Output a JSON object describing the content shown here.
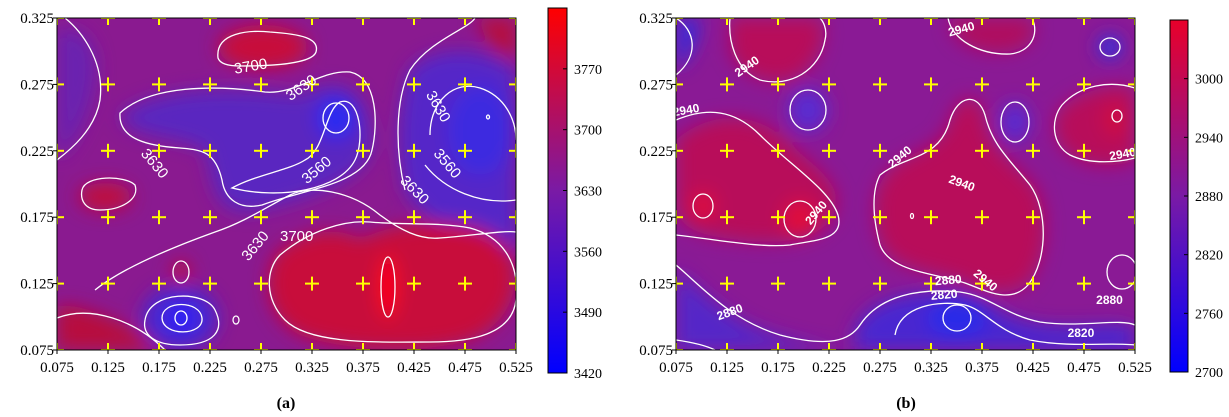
{
  "chart_data": [
    {
      "type": "heatmap",
      "caption": "(a)",
      "title": "",
      "xlabel": "",
      "ylabel": "",
      "xlim": [
        0.075,
        0.525
      ],
      "ylim": [
        0.075,
        0.325
      ],
      "x_ticks": [
        "0.075",
        "0.125",
        "0.175",
        "0.225",
        "0.275",
        "0.325",
        "0.375",
        "0.425",
        "0.475",
        "0.525"
      ],
      "y_ticks": [
        "0.075",
        "0.125",
        "0.175",
        "0.225",
        "0.275",
        "0.325"
      ],
      "colorbar": {
        "min": 3420,
        "max": 3840,
        "tick_values": [
          3420,
          3490,
          3560,
          3630,
          3700,
          3770
        ],
        "tick_labels": [
          "3420",
          "3490",
          "3560",
          "3630",
          "3700",
          "3770"
        ],
        "color_low": "#0000ff",
        "color_mid": "#8a1a99",
        "color_high": "#ff0000"
      },
      "contour_labels": [
        {
          "text": "3700",
          "x": 0.265,
          "y": 0.288,
          "angle": -10
        },
        {
          "text": "3630",
          "x": 0.315,
          "y": 0.272,
          "angle": -35
        },
        {
          "text": "3630",
          "x": 0.17,
          "y": 0.215,
          "angle": 50
        },
        {
          "text": "3560",
          "x": 0.33,
          "y": 0.21,
          "angle": -40
        },
        {
          "text": "3630",
          "x": 0.27,
          "y": 0.153,
          "angle": -50
        },
        {
          "text": "3700",
          "x": 0.31,
          "y": 0.16,
          "angle": 0
        },
        {
          "text": "3630",
          "x": 0.448,
          "y": 0.258,
          "angle": 60
        },
        {
          "text": "3560",
          "x": 0.457,
          "y": 0.215,
          "angle": 50
        },
        {
          "text": "3630",
          "x": 0.425,
          "y": 0.195,
          "angle": 45
        }
      ],
      "sample_points_x": [
        0.075,
        0.125,
        0.175,
        0.225,
        0.275,
        0.325,
        0.375,
        0.425,
        0.475,
        0.525
      ],
      "sample_points_y": [
        0.075,
        0.125,
        0.175,
        0.225,
        0.275,
        0.325
      ],
      "marker_color": "#ffff00"
    },
    {
      "type": "heatmap",
      "caption": "(b)",
      "title": "",
      "xlabel": "",
      "ylabel": "",
      "xlim": [
        0.075,
        0.525
      ],
      "ylim": [
        0.075,
        0.325
      ],
      "x_ticks": [
        "0.075",
        "0.125",
        "0.175",
        "0.225",
        "0.275",
        "0.325",
        "0.375",
        "0.425",
        "0.475",
        "0.525"
      ],
      "y_ticks": [
        "0.075",
        "0.125",
        "0.175",
        "0.225",
        "0.275",
        "0.325"
      ],
      "colorbar": {
        "min": 2700,
        "max": 3060,
        "tick_values": [
          2700,
          2760,
          2820,
          2880,
          2940,
          3000
        ],
        "tick_labels": [
          "2700",
          "2760",
          "2820",
          "2880",
          "2940",
          "3000"
        ],
        "color_low": "#0000ff",
        "color_mid": "#8a1a99",
        "color_high": "#e8002a"
      },
      "contour_labels": [
        {
          "text": "2940",
          "x": 0.355,
          "y": 0.316,
          "angle": -15
        },
        {
          "text": "2940",
          "x": 0.145,
          "y": 0.288,
          "angle": -35
        },
        {
          "text": "2940",
          "x": 0.085,
          "y": 0.255,
          "angle": -10
        },
        {
          "text": "2940",
          "x": 0.295,
          "y": 0.22,
          "angle": -40
        },
        {
          "text": "2940",
          "x": 0.355,
          "y": 0.2,
          "angle": 20
        },
        {
          "text": "2940",
          "x": 0.513,
          "y": 0.222,
          "angle": -10
        },
        {
          "text": "2940",
          "x": 0.213,
          "y": 0.178,
          "angle": -50
        },
        {
          "text": "2880",
          "x": 0.342,
          "y": 0.127,
          "angle": -5
        },
        {
          "text": "2940",
          "x": 0.378,
          "y": 0.127,
          "angle": 40
        },
        {
          "text": "2820",
          "x": 0.338,
          "y": 0.116,
          "angle": -5
        },
        {
          "text": "2880",
          "x": 0.128,
          "y": 0.103,
          "angle": -20
        },
        {
          "text": "2880",
          "x": 0.5,
          "y": 0.112,
          "angle": 0
        },
        {
          "text": "2820",
          "x": 0.472,
          "y": 0.087,
          "angle": 0
        }
      ],
      "sample_points_x": [
        0.075,
        0.125,
        0.175,
        0.225,
        0.275,
        0.325,
        0.375,
        0.425,
        0.475,
        0.525
      ],
      "sample_points_y": [
        0.075,
        0.125,
        0.175,
        0.225,
        0.275,
        0.325
      ],
      "marker_color": "#ffff00"
    }
  ]
}
